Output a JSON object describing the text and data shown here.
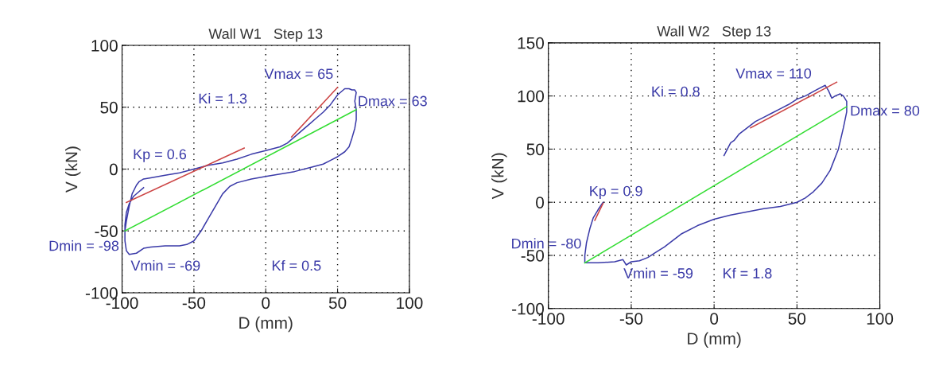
{
  "chart_data": [
    {
      "type": "line",
      "title": "Wall W1   Step 13",
      "xlabel": "D (mm)",
      "ylabel": "V (kN)",
      "xlim": [
        -100,
        100
      ],
      "xticks": [
        -100,
        -50,
        0,
        50,
        100
      ],
      "ylim": [
        -100,
        100
      ],
      "yticks": [
        -100,
        -50,
        0,
        50,
        100
      ],
      "grid": true,
      "line_style": "solid",
      "marker": "none",
      "series": [
        {
          "color": "#3a3aa8",
          "x": [
            -98,
            -97,
            -95,
            -93,
            -90,
            -88,
            -85,
            -80,
            -70,
            -60,
            -50,
            -40,
            -30,
            -20,
            -10,
            0,
            10,
            15,
            20,
            25,
            30,
            35,
            40,
            45,
            50,
            55,
            58,
            60,
            62,
            63,
            62,
            63,
            63,
            62,
            60,
            58,
            55,
            50,
            45,
            40,
            30,
            20,
            10,
            0,
            -10,
            -20,
            -25,
            -30,
            -35,
            -40,
            -45,
            -50,
            -55,
            -60,
            -70,
            -80,
            -85,
            -90,
            -95,
            -97,
            -98,
            -98,
            -97,
            -95,
            -92,
            -88,
            -85
          ],
          "values": [
            -50,
            -42,
            -30,
            -20,
            -13,
            -10,
            -8,
            -7,
            -5,
            -3,
            0,
            3,
            5,
            8,
            12,
            15,
            18,
            21,
            26,
            31,
            36,
            41,
            46,
            52,
            60,
            65,
            65,
            64,
            64,
            62,
            55,
            48,
            40,
            33,
            25,
            18,
            14,
            10,
            7,
            4,
            1,
            -2,
            -4,
            -6,
            -8,
            -11,
            -14,
            -20,
            -30,
            -40,
            -50,
            -58,
            -61,
            -62,
            -62,
            -63,
            -64,
            -68,
            -69,
            -66,
            -58,
            -45,
            -35,
            -28,
            -22,
            -18,
            -15
          ]
        },
        {
          "color": "#cc4444",
          "x": [
            -97,
            -15
          ],
          "values": [
            -27,
            17
          ]
        },
        {
          "color": "#cc4444",
          "x": [
            18,
            50
          ],
          "values": [
            26,
            66
          ]
        },
        {
          "color": "#33dd33",
          "x": [
            -98,
            63
          ],
          "values": [
            -50,
            48
          ]
        }
      ],
      "annotations": [
        "Vmax = 65",
        "Ki = 1.3",
        "Dmax = 63",
        "Kp = 0.6",
        "Dmin = -98",
        "Vmin = -69",
        "Kf = 0.5"
      ]
    },
    {
      "type": "line",
      "title": "Wall W2   Step 13",
      "xlabel": "D (mm)",
      "ylabel": "V (kN)",
      "xlim": [
        -100,
        100
      ],
      "xticks": [
        -100,
        -50,
        0,
        50,
        100
      ],
      "ylim": [
        -100,
        150
      ],
      "yticks": [
        -100,
        -50,
        0,
        50,
        100,
        150
      ],
      "grid": true,
      "line_style": "solid",
      "marker": "none",
      "series": [
        {
          "color": "#3a3aa8",
          "x": [
            -67,
            -70,
            -73,
            -75,
            -77,
            -78,
            -78,
            -75,
            -70,
            -60,
            -55,
            -53,
            -50,
            -45,
            -40,
            -35,
            -30,
            -25,
            -20,
            -10,
            0,
            10,
            20,
            30,
            40,
            50,
            55,
            60,
            65,
            70,
            75,
            78,
            80,
            80,
            78,
            76,
            73,
            71,
            69,
            67,
            62,
            55,
            50,
            45,
            40,
            35,
            30,
            25,
            20,
            15,
            12,
            10,
            8,
            6
          ],
          "values": [
            0,
            -7,
            -15,
            -25,
            -38,
            -50,
            -57,
            -57,
            -57,
            -56,
            -54,
            -59,
            -56,
            -55,
            -52,
            -47,
            -42,
            -36,
            -30,
            -22,
            -16,
            -12,
            -9,
            -6,
            -4,
            0,
            4,
            10,
            18,
            30,
            50,
            70,
            85,
            95,
            100,
            102,
            100,
            98,
            105,
            110,
            106,
            100,
            97,
            92,
            88,
            84,
            80,
            76,
            70,
            64,
            58,
            56,
            50,
            44
          ]
        },
        {
          "color": "#cc4444",
          "x": [
            -72,
            -67
          ],
          "values": [
            -17,
            -1
          ]
        },
        {
          "color": "#cc4444",
          "x": [
            22,
            74
          ],
          "values": [
            70,
            113
          ]
        },
        {
          "color": "#33dd33",
          "x": [
            -78,
            80
          ],
          "values": [
            -57,
            90
          ]
        }
      ],
      "annotations": [
        "Vmax = 110",
        "Ki = 0.8",
        "Dmax = 80",
        "Kp = 0.9",
        "Dmin = -80",
        "Vmin = -59",
        "Kf = 1.8"
      ]
    }
  ]
}
